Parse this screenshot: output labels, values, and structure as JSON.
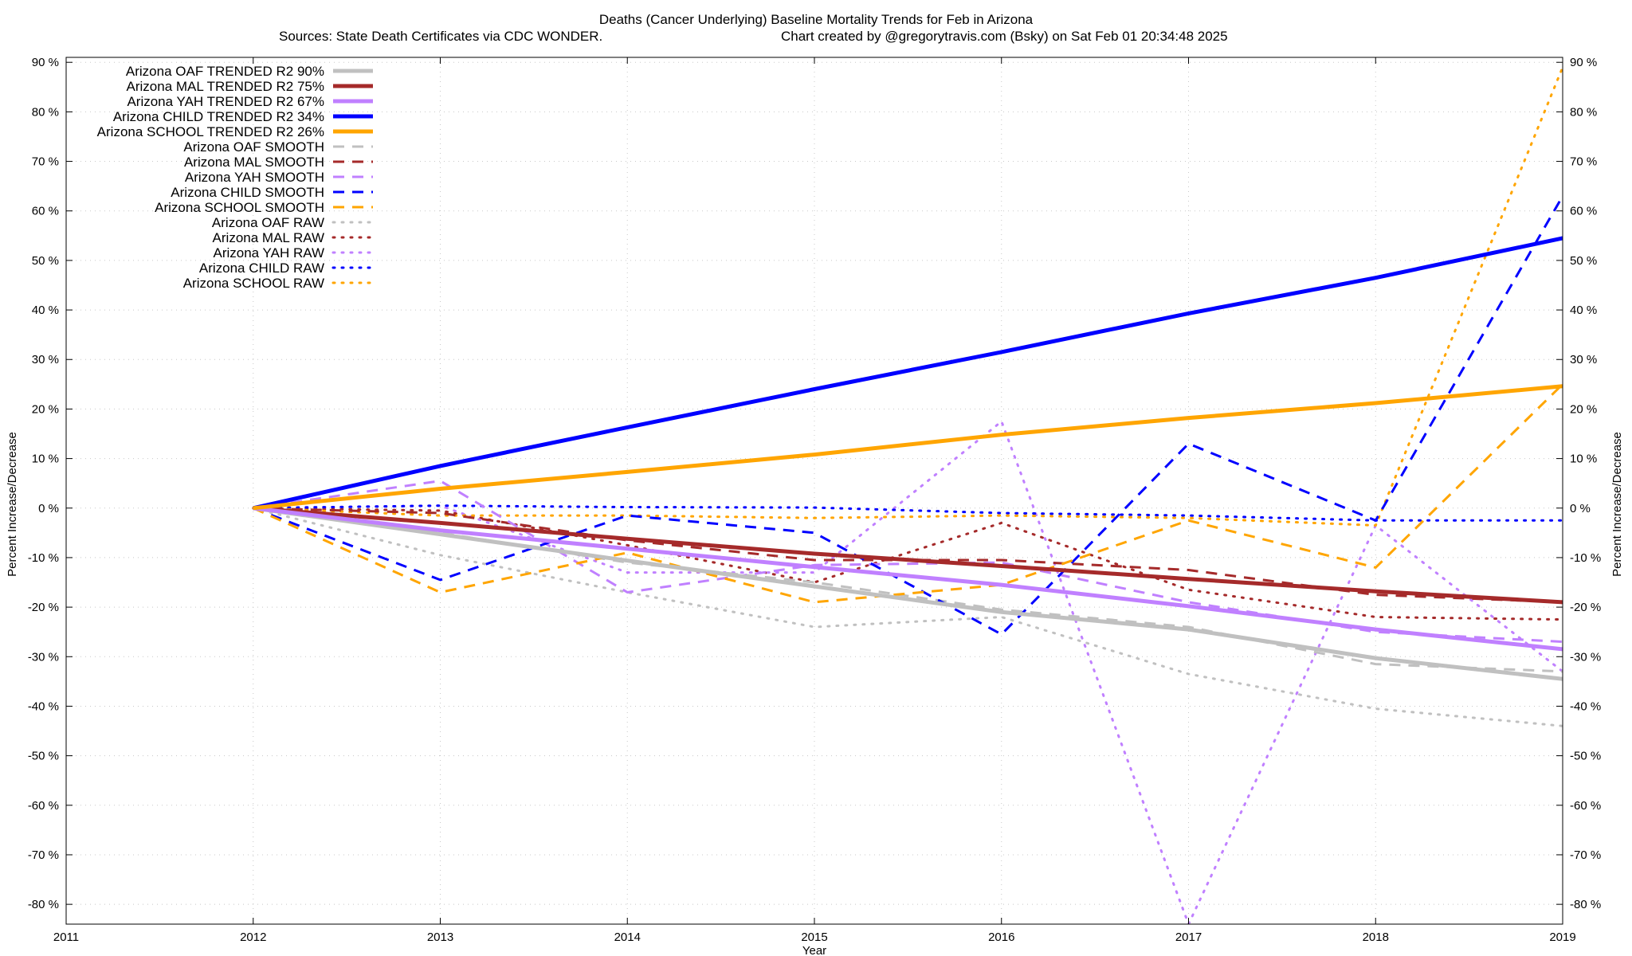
{
  "chart_data": {
    "type": "line",
    "title": "Deaths (Cancer Underlying)  Baseline Mortality Trends for Feb in Arizona",
    "subtitle_left": "Sources: State Death Certificates via CDC WONDER.",
    "subtitle_right": "Chart created by @gregorytravis.com (Bsky) on Sat Feb 01 20:34:48 2025",
    "xlabel": "Year",
    "ylabel_left": "Percent Increase/Decrease",
    "ylabel_right": "Percent Increase/Decrease",
    "xlim": [
      2011,
      2019
    ],
    "ylim": [
      -84,
      91
    ],
    "x_ticks": [
      2011,
      2012,
      2013,
      2014,
      2015,
      2016,
      2017,
      2018,
      2019
    ],
    "x_tick_labels": [
      "2011",
      "2012",
      "2013",
      "2014",
      "2015",
      "2016",
      "2017",
      "2018",
      "2019"
    ],
    "y_ticks": [
      -80,
      -70,
      -60,
      -50,
      -40,
      -30,
      -20,
      -10,
      0,
      10,
      20,
      30,
      40,
      50,
      60,
      70,
      80,
      90
    ],
    "y_tick_labels_left": [
      "-80 %",
      "-70 %",
      "-60 %",
      "-50 %",
      "-40 %",
      "-30 %",
      "-20 %",
      "-10 %",
      "0 %",
      "10 %",
      "20 %",
      "30 %",
      "40 %",
      "50 %",
      "60 %",
      "70 %",
      "80 %",
      "90 %"
    ],
    "y_tick_labels_right": [
      "-80 %",
      "-70 %",
      "-60 %",
      "-50 %",
      "-40 %",
      "-30 %",
      "-20 %",
      "-10 %",
      "0 %",
      "10 %",
      "20 %",
      "30 %",
      "40 %",
      "50 %",
      "60 %",
      "70 %",
      "80 %",
      "90 %"
    ],
    "grid": true,
    "legend_position": "top-left",
    "x": [
      2012,
      2013,
      2014,
      2015,
      2016,
      2017,
      2018,
      2019
    ],
    "series": [
      {
        "name": "Arizona OAF TRENDED R2  90%",
        "color": "#c0c0c0",
        "style": "solid",
        "values": [
          0,
          -5.3,
          -10.6,
          -15.8,
          -21,
          -24.5,
          -30.3,
          -34.5
        ]
      },
      {
        "name": "Arizona MAL TRENDED R2  75%",
        "color": "#a52a2a",
        "style": "solid",
        "values": [
          0,
          -3,
          -6.2,
          -9.2,
          -11.7,
          -14.3,
          -16.8,
          -19
        ]
      },
      {
        "name": "Arizona YAH TRENDED R2  67%",
        "color": "#c080ff",
        "style": "solid",
        "values": [
          0,
          -4.5,
          -8.2,
          -11.9,
          -15.5,
          -19.8,
          -24.5,
          -28.5
        ]
      },
      {
        "name": "Arizona CHILD TRENDED R2  34%",
        "color": "#0000ff",
        "style": "solid",
        "values": [
          0,
          8.5,
          16.3,
          24,
          31.5,
          39.3,
          46.5,
          54.5
        ]
      },
      {
        "name": "Arizona SCHOOL TRENDED R2  26%",
        "color": "#ffa500",
        "style": "solid",
        "values": [
          0,
          3.9,
          7.3,
          10.8,
          14.8,
          18.2,
          21.2,
          24.6
        ]
      },
      {
        "name": "Arizona OAF SMOOTH",
        "color": "#c0c0c0",
        "style": "dashed",
        "values": [
          0,
          -5,
          -11,
          -15,
          -20.5,
          -24,
          -31.5,
          -33
        ]
      },
      {
        "name": "Arizona MAL SMOOTH",
        "color": "#a52a2a",
        "style": "dashed",
        "values": [
          0,
          -1,
          -6.5,
          -10.5,
          -10.5,
          -12.5,
          -17.5,
          -19
        ]
      },
      {
        "name": "Arizona YAH SMOOTH",
        "color": "#c080ff",
        "style": "dashed",
        "values": [
          0,
          5.5,
          -17,
          -11.5,
          -11,
          -19,
          -25,
          -27
        ]
      },
      {
        "name": "Arizona CHILD SMOOTH",
        "color": "#0000ff",
        "style": "dashed",
        "values": [
          0,
          -14.5,
          -1.5,
          -5,
          -25.5,
          13,
          -2.5,
          63
        ]
      },
      {
        "name": "Arizona SCHOOL SMOOTH",
        "color": "#ffa500",
        "style": "dashed",
        "values": [
          0,
          -17,
          -9,
          -19,
          -15.5,
          -2.5,
          -12,
          25
        ]
      },
      {
        "name": "Arizona OAF RAW",
        "color": "#c0c0c0",
        "style": "dotted",
        "values": [
          0,
          -9.5,
          -17,
          -24,
          -22,
          -33.5,
          -40.5,
          -44
        ]
      },
      {
        "name": "Arizona MAL RAW",
        "color": "#a52a2a",
        "style": "dotted",
        "values": [
          0,
          -0.5,
          -7.5,
          -15,
          -3,
          -16.5,
          -22,
          -22.5
        ]
      },
      {
        "name": "Arizona YAH RAW",
        "color": "#c080ff",
        "style": "dotted",
        "values": [
          0,
          0.5,
          -13,
          -13,
          17.5,
          -84,
          -3.5,
          -33
        ]
      },
      {
        "name": "Arizona CHILD RAW",
        "color": "#0000ff",
        "style": "dotted",
        "values": [
          0,
          0.5,
          0.2,
          0.1,
          -1,
          -1.5,
          -2.5,
          -2.5
        ]
      },
      {
        "name": "Arizona SCHOOL RAW",
        "color": "#ffa500",
        "style": "dotted",
        "values": [
          0,
          -1.5,
          -1.5,
          -2,
          -1.5,
          -2,
          -3.5,
          89
        ]
      }
    ]
  }
}
